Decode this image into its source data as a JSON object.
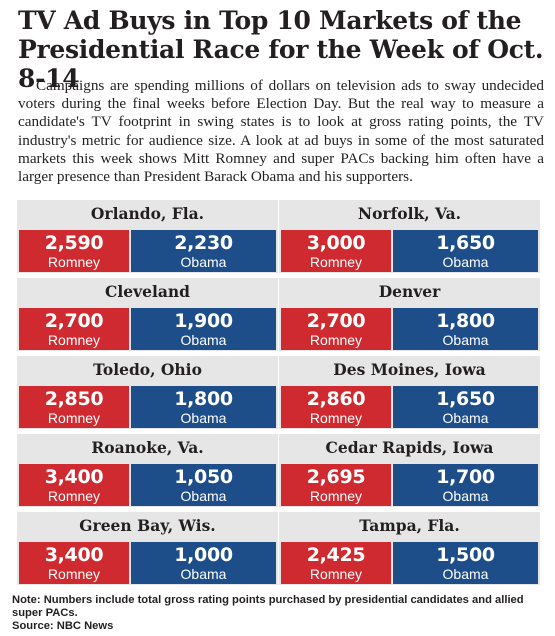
{
  "title": "TV Ad Buys in Top 10 Markets of the Presidential Race for the Week of Oct. 8-14",
  "intro": "Campaigns are spending millions of dollars on television ads to sway undecided voters during the final weeks before Election Day. But the real way to measure a candidate's TV footprint in swing states is to look at gross rating points, the TV industry's metric for audience size. A look at ad buys in some of the most saturated markets this week shows Mitt Romney and super PACs backing him often have a larger presence than President Barack Obama and his supporters.",
  "chart_data": {
    "type": "table",
    "series": [
      {
        "name": "Romney",
        "color": "#cf2a2f"
      },
      {
        "name": "Obama",
        "color": "#1d4e89"
      }
    ],
    "markets": [
      {
        "name": "Orlando, Fla.",
        "romney": "2,590",
        "obama": "2,230"
      },
      {
        "name": "Norfolk, Va.",
        "romney": "3,000",
        "obama": "1,650"
      },
      {
        "name": "Cleveland",
        "romney": "2,700",
        "obama": "1,900"
      },
      {
        "name": "Denver",
        "romney": "2,700",
        "obama": "1,800"
      },
      {
        "name": "Toledo, Ohio",
        "romney": "2,850",
        "obama": "1,800"
      },
      {
        "name": "Des Moines, Iowa",
        "romney": "2,860",
        "obama": "1,650"
      },
      {
        "name": "Roanoke, Va.",
        "romney": "3,400",
        "obama": "1,050"
      },
      {
        "name": "Cedar Rapids, Iowa",
        "romney": "2,695",
        "obama": "1,700"
      },
      {
        "name": "Green Bay, Wis.",
        "romney": "3,400",
        "obama": "1,000"
      },
      {
        "name": "Tampa, Fla.",
        "romney": "2,425",
        "obama": "1,500"
      }
    ]
  },
  "note": "Note: Numbers include total gross rating points purchased by presidential candidates and allied super PACs.",
  "source": "Source: NBC News"
}
